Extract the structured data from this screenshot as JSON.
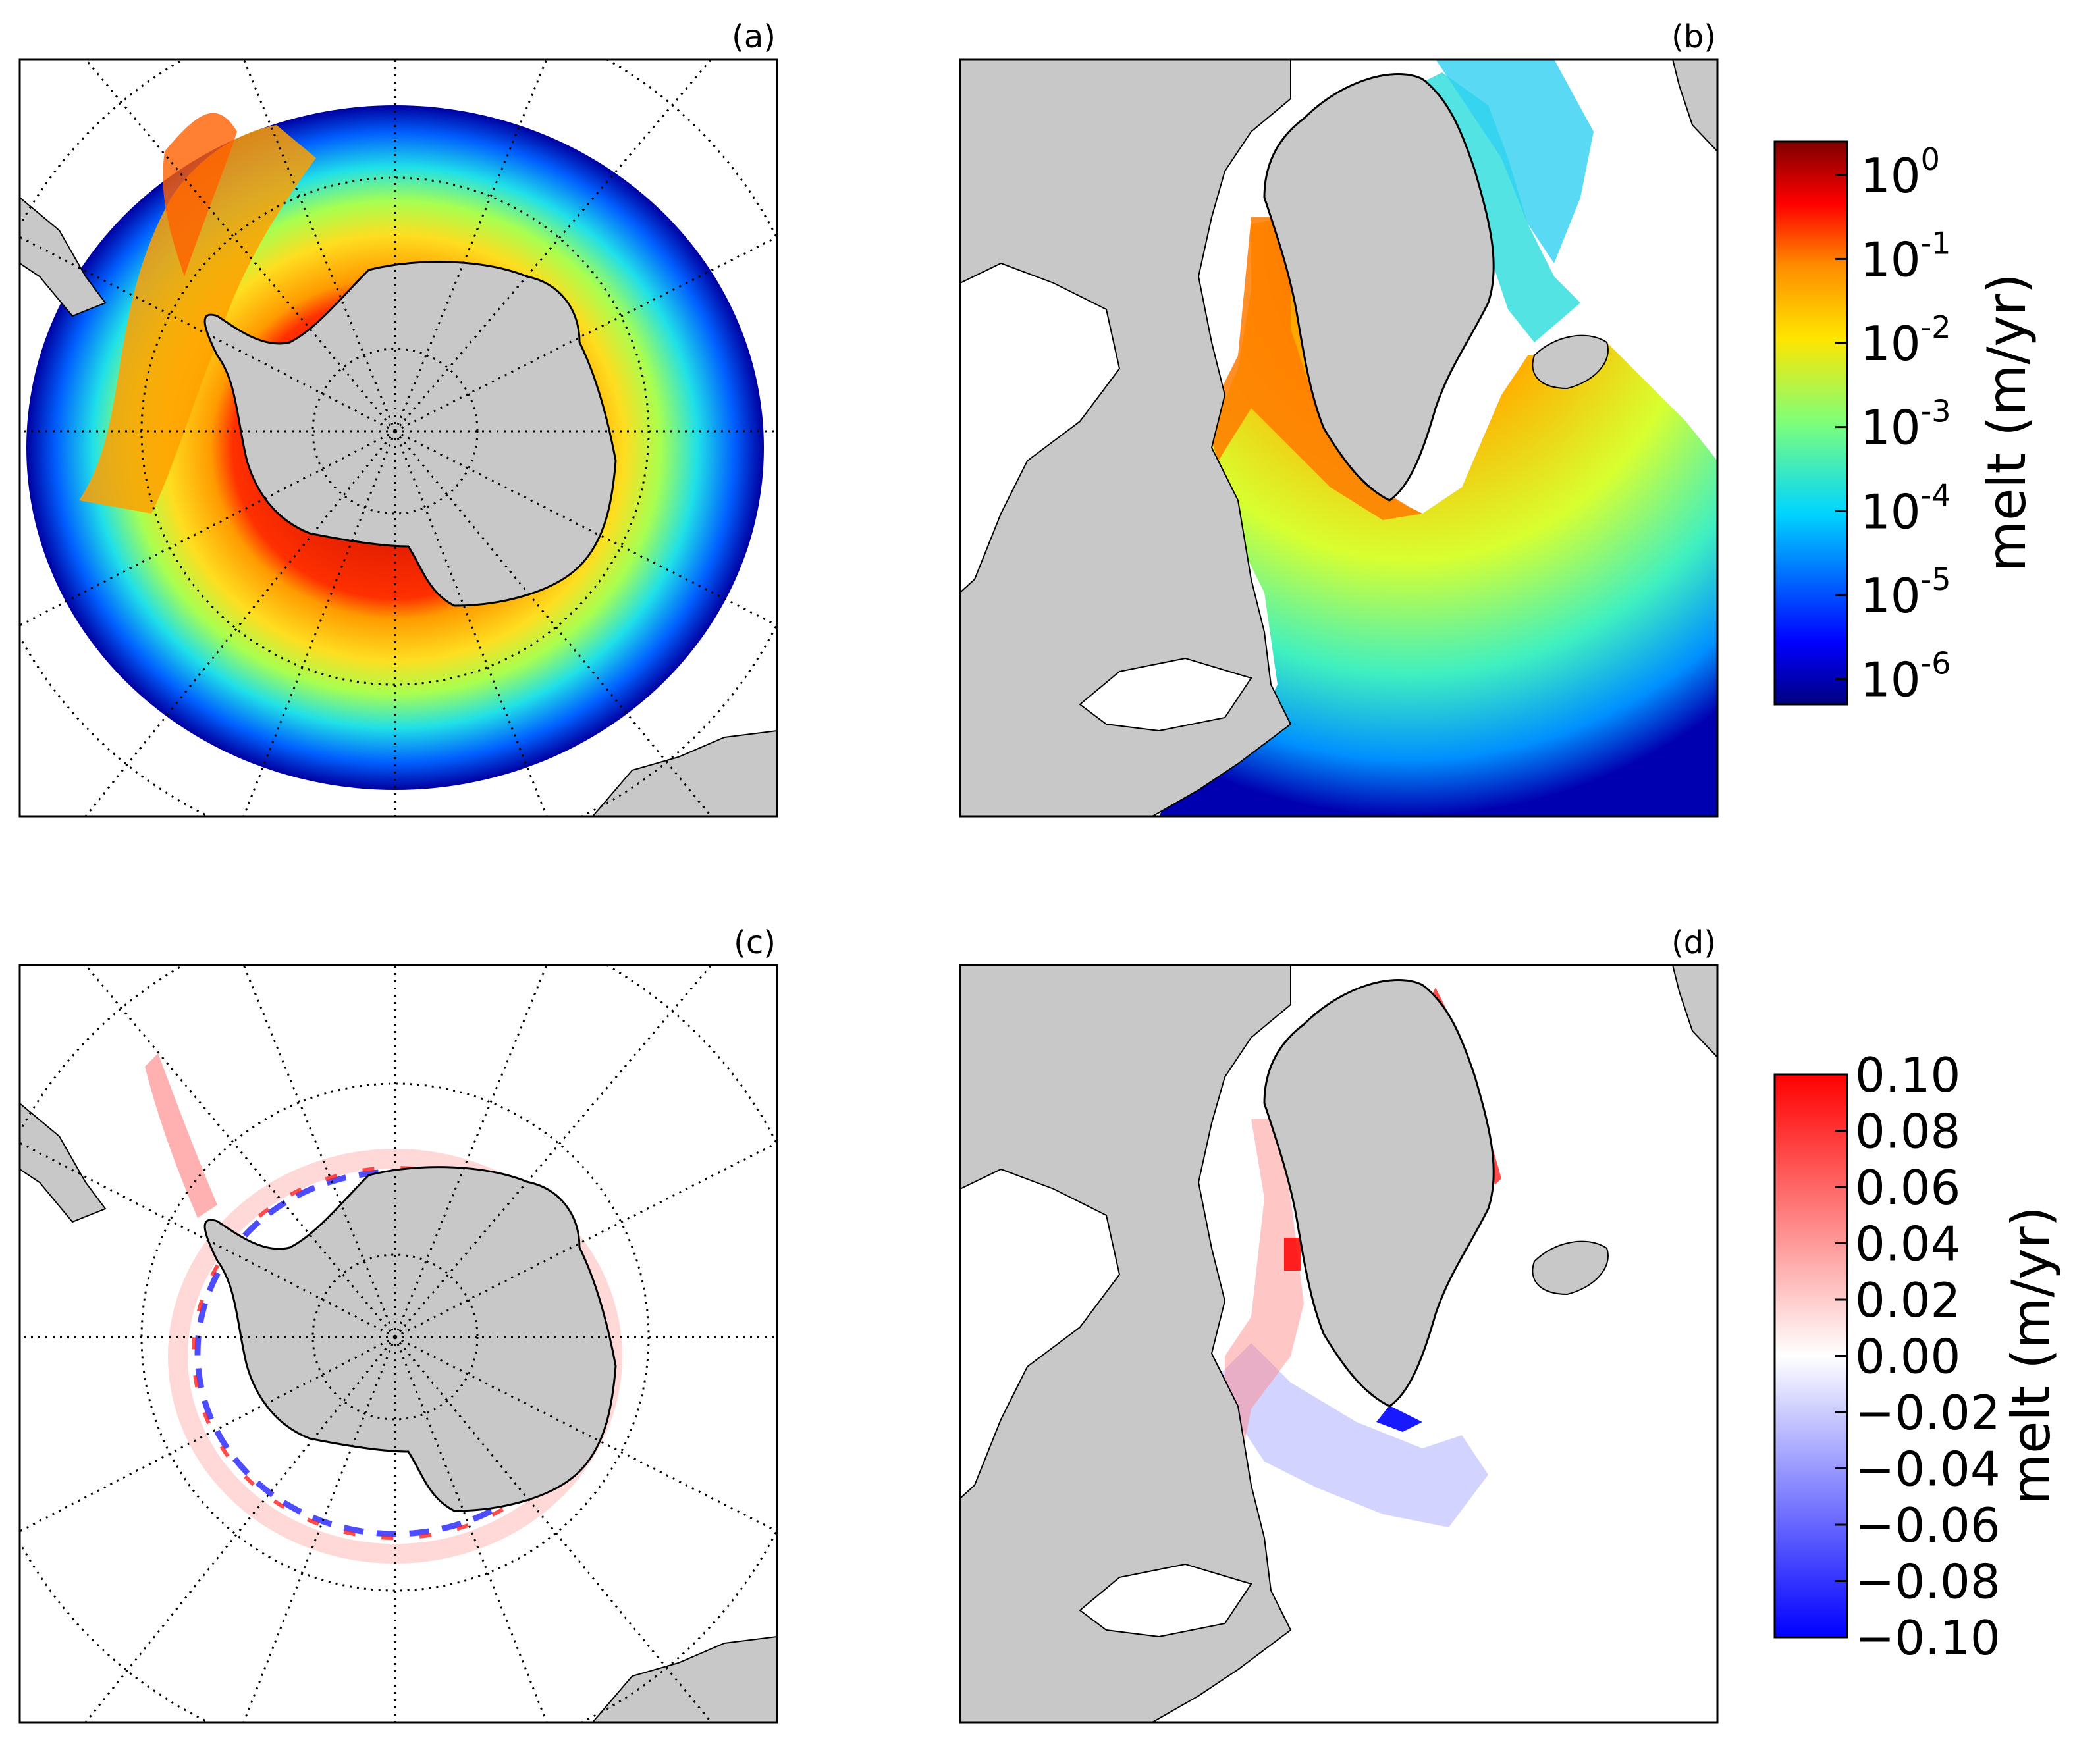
{
  "figure": {
    "panels": [
      {
        "id": "a",
        "label": "(a)",
        "region": "Southern Ocean / Antarctica",
        "variable": "melt",
        "scale": "log"
      },
      {
        "id": "b",
        "label": "(b)",
        "region": "North Atlantic / Greenland",
        "variable": "melt",
        "scale": "log"
      },
      {
        "id": "c",
        "label": "(c)",
        "region": "Southern Ocean / Antarctica",
        "variable": "melt difference",
        "scale": "linear"
      },
      {
        "id": "d",
        "label": "(d)",
        "region": "North Atlantic / Greenland",
        "variable": "melt difference",
        "scale": "linear"
      }
    ],
    "colorbar_top": {
      "label": "melt (m/yr)",
      "colormap": "jet",
      "ticks": [
        {
          "base": "10",
          "exp": "0"
        },
        {
          "base": "10",
          "exp": "-1"
        },
        {
          "base": "10",
          "exp": "-2"
        },
        {
          "base": "10",
          "exp": "-3"
        },
        {
          "base": "10",
          "exp": "-4"
        },
        {
          "base": "10",
          "exp": "-5"
        },
        {
          "base": "10",
          "exp": "-6"
        }
      ],
      "range": [
        5e-07,
        2.5
      ]
    },
    "colorbar_bottom": {
      "label": "melt (m/yr)",
      "colormap": "bwr",
      "ticks": [
        "0.10",
        "0.08",
        "0.06",
        "0.04",
        "0.02",
        "0.00",
        "−0.02",
        "−0.04",
        "−0.06",
        "−0.08",
        "−0.10"
      ],
      "range": [
        -0.1,
        0.1
      ]
    },
    "colors": {
      "land": "#c8c8c8",
      "coast": "#000000",
      "grid": "#000000",
      "positive": "#ff0000",
      "negative": "#0000ff"
    }
  }
}
